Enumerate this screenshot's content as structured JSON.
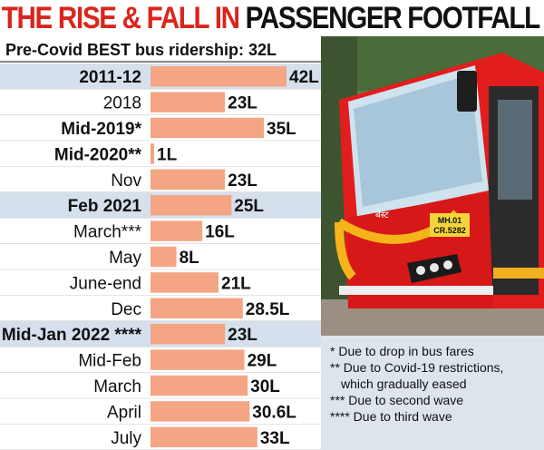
{
  "header": {
    "title_part1": "THE RISE & FALL IN ",
    "title_part2": "PASSENGER FOOTFALL",
    "subtitle": "Pre-Covid BEST bus ridership: 32L"
  },
  "chart_data": {
    "type": "bar",
    "orientation": "horizontal",
    "title": "THE RISE & FALL IN PASSENGER FOOTFALL",
    "subtitle": "Pre-Covid BEST bus ridership: 32L",
    "unit": "L",
    "categories": [
      "2011-12",
      "2018",
      "Mid-2019*",
      "Mid-2020**",
      "Nov",
      "Feb 2021",
      "March***",
      "May",
      "June-end",
      "Dec",
      "Mid-Jan 2022 ****",
      "Mid-Feb",
      "March",
      "April",
      "July"
    ],
    "values": [
      42,
      23,
      35,
      1,
      23,
      25,
      16,
      8,
      21,
      28.5,
      23,
      29,
      30,
      30.6,
      33
    ],
    "value_labels": [
      "42L",
      "23L",
      "35L",
      "1L",
      "23L",
      "25L",
      "16L",
      "8L",
      "21L",
      "28.5L",
      "23L",
      "29L",
      "30L",
      "30.6L",
      "33L"
    ],
    "bold_labels": [
      true,
      false,
      true,
      true,
      false,
      true,
      false,
      false,
      false,
      false,
      true,
      false,
      false,
      false,
      false
    ],
    "highlighted_rows": [
      true,
      false,
      false,
      false,
      false,
      true,
      false,
      false,
      false,
      false,
      true,
      false,
      false,
      false,
      false
    ],
    "xlim": [
      0,
      42
    ],
    "grid": false,
    "legend": "none",
    "colors": {
      "bar": "#f4a583",
      "highlight_row": "#d5e0ec",
      "label_panel": "#ffffff"
    }
  },
  "footnotes": [
    "* Due to drop in bus fares",
    "** Due to Covid-19 restrictions,",
    "which gradually eased",
    "*** Due to second wave",
    "**** Due to third wave"
  ],
  "photo": {
    "description": "red-bus-photo",
    "plate_line1": "MH.01",
    "plate_line2": "CR.5282",
    "windshield_text": "बेस्ट"
  }
}
